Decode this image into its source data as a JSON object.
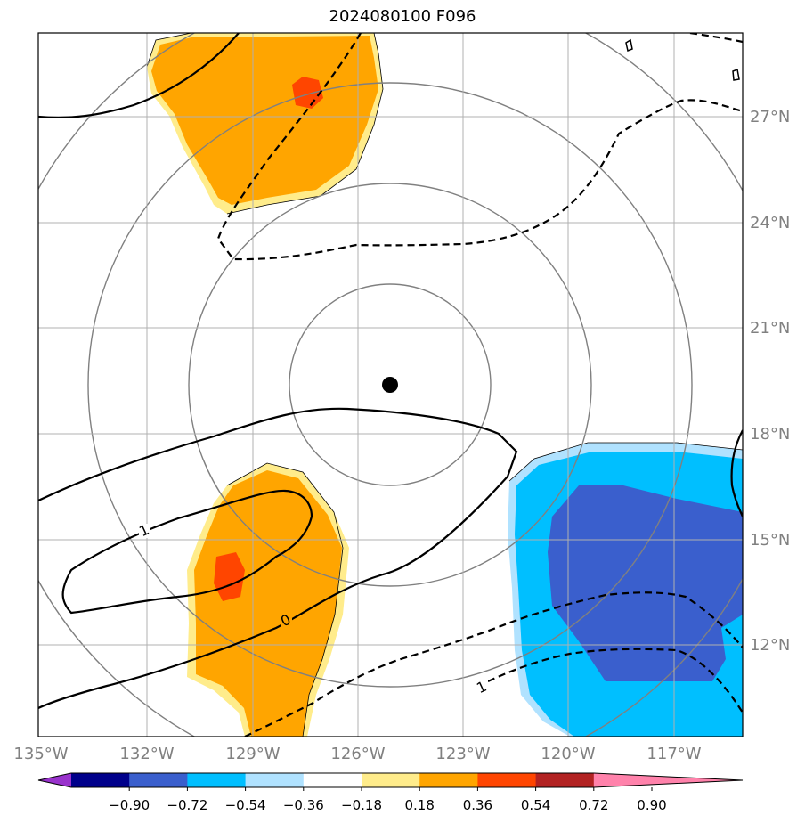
{
  "title": "2024080100 F096",
  "lon_labels": [
    "135°W",
    "132°W",
    "129°W",
    "126°W",
    "123°W",
    "120°W",
    "117°W"
  ],
  "lat_labels": [
    "27°N",
    "24°N",
    "21°N",
    "18°N",
    "15°N",
    "12°N"
  ],
  "contour_labels": [
    "1",
    "0",
    "1"
  ],
  "colorbar": {
    "tick_labels": [
      "−0.90",
      "−0.72",
      "−0.54",
      "−0.36",
      "−0.18",
      "0.18",
      "0.36",
      "0.54",
      "0.72",
      "0.90"
    ],
    "colors": [
      "#9932cc",
      "#00008b",
      "#3a5fcd",
      "#00bfff",
      "#b0e2ff",
      "#ffffff",
      "#ffec8b",
      "#ffa500",
      "#ff4500",
      "#b22222",
      "#ff82ab"
    ]
  },
  "map": {
    "lon_range": [
      -135,
      -115
    ],
    "lat_range": [
      9.5,
      29.5
    ],
    "center": {
      "lon": -125,
      "lat": 19.5
    }
  }
}
